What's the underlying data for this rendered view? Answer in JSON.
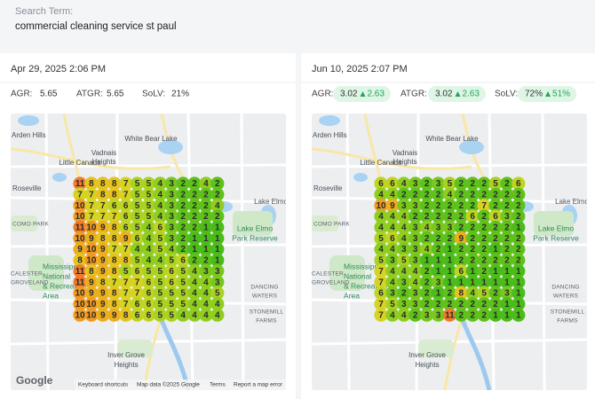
{
  "search": {
    "label": "Search Term:",
    "term": "commercial cleaning service st paul"
  },
  "map_labels": [
    [
      "Arden Hills"
    ],
    [
      "Vadnais",
      "Heights"
    ],
    [
      "White Bear Lake"
    ],
    [
      "Little Canada"
    ],
    [
      "Roseville"
    ],
    [
      "COMO PARK"
    ],
    [
      "Lake Elmo"
    ],
    [
      "Lake Elmo",
      "Park Reserve"
    ],
    [
      "Mississippi",
      "National",
      "& Recreation",
      "Area"
    ],
    [
      "CALESTER",
      "GROVELAND"
    ],
    [
      "DANCING",
      "WATERS"
    ],
    [
      "STONEMILL",
      "FARMS"
    ],
    [
      "Inver Grove",
      "Heights"
    ]
  ],
  "map_logo": "Google",
  "map_footer": [
    "Keyboard shortcuts",
    "Map data ©2025 Google",
    "Terms",
    "Report a map error"
  ],
  "reports": [
    {
      "date": "Apr 29, 2025 2:06 PM",
      "metrics": [
        {
          "label": "AGR:",
          "value": "5.65"
        },
        {
          "label": "ATGR:",
          "value": "5.65"
        },
        {
          "label": "SoLV:",
          "value": "21%"
        }
      ],
      "grid": [
        [
          11,
          8,
          8,
          8,
          7,
          5,
          5,
          4,
          3,
          2,
          2,
          4,
          2
        ],
        [
          7,
          7,
          8,
          8,
          7,
          5,
          5,
          4,
          3,
          2,
          2,
          2,
          2
        ],
        [
          10,
          7,
          7,
          6,
          6,
          5,
          5,
          4,
          3,
          2,
          2,
          2,
          4
        ],
        [
          10,
          7,
          7,
          7,
          6,
          5,
          5,
          4,
          3,
          2,
          2,
          2,
          2
        ],
        [
          11,
          10,
          9,
          8,
          6,
          5,
          4,
          6,
          3,
          2,
          2,
          1,
          1
        ],
        [
          10,
          9,
          8,
          8,
          9,
          6,
          4,
          5,
          3,
          2,
          1,
          1,
          1
        ],
        [
          9,
          10,
          9,
          7,
          7,
          4,
          4,
          5,
          4,
          2,
          1,
          1,
          1
        ],
        [
          8,
          10,
          9,
          8,
          8,
          5,
          4,
          4,
          5,
          6,
          2,
          2,
          1
        ],
        [
          11,
          8,
          9,
          8,
          5,
          6,
          5,
          5,
          6,
          5,
          4,
          3,
          3
        ],
        [
          11,
          9,
          8,
          7,
          7,
          7,
          6,
          5,
          6,
          5,
          4,
          4,
          3
        ],
        [
          10,
          9,
          9,
          8,
          7,
          7,
          6,
          5,
          5,
          5,
          4,
          4,
          5
        ],
        [
          10,
          10,
          9,
          8,
          7,
          6,
          6,
          5,
          5,
          5,
          4,
          4,
          4
        ],
        [
          10,
          10,
          9,
          9,
          8,
          6,
          6,
          5,
          5,
          4,
          4,
          4,
          4
        ]
      ]
    },
    {
      "date": "Jun 10, 2025 2:07 PM",
      "metrics": [
        {
          "label": "AGR:",
          "value": "3.02",
          "change": "2.63"
        },
        {
          "label": "ATGR:",
          "value": "3.02",
          "change": "2.63"
        },
        {
          "label": "SoLV:",
          "value": "72%",
          "change": "51%"
        }
      ],
      "grid": [
        [
          6,
          6,
          4,
          3,
          2,
          3,
          5,
          2,
          2,
          2,
          5,
          2,
          6
        ],
        [
          4,
          4,
          2,
          2,
          2,
          2,
          4,
          2,
          2,
          2,
          2,
          2,
          2
        ],
        [
          10,
          9,
          3,
          3,
          2,
          2,
          2,
          2,
          2,
          7,
          2,
          2,
          2
        ],
        [
          4,
          4,
          4,
          2,
          2,
          2,
          2,
          2,
          6,
          2,
          6,
          3,
          2
        ],
        [
          4,
          4,
          4,
          3,
          4,
          3,
          3,
          2,
          2,
          2,
          2,
          2,
          1
        ],
        [
          5,
          6,
          4,
          3,
          2,
          2,
          2,
          9,
          2,
          2,
          2,
          2,
          2
        ],
        [
          4,
          4,
          3,
          3,
          4,
          2,
          1,
          2,
          2,
          2,
          1,
          2,
          2
        ],
        [
          5,
          3,
          5,
          3,
          1,
          1,
          1,
          2,
          2,
          2,
          2,
          2,
          2
        ],
        [
          7,
          4,
          4,
          4,
          2,
          1,
          1,
          6,
          1,
          2,
          1,
          1,
          1
        ],
        [
          7,
          4,
          3,
          4,
          2,
          3,
          1,
          1,
          1,
          1,
          1,
          1,
          1
        ],
        [
          6,
          3,
          2,
          3,
          2,
          1,
          2,
          8,
          4,
          5,
          2,
          3,
          1
        ],
        [
          7,
          5,
          3,
          3,
          2,
          2,
          2,
          2,
          2,
          2,
          2,
          1,
          1
        ],
        [
          7,
          4,
          4,
          2,
          3,
          3,
          11,
          2,
          2,
          2,
          1,
          1,
          1
        ]
      ]
    }
  ]
}
